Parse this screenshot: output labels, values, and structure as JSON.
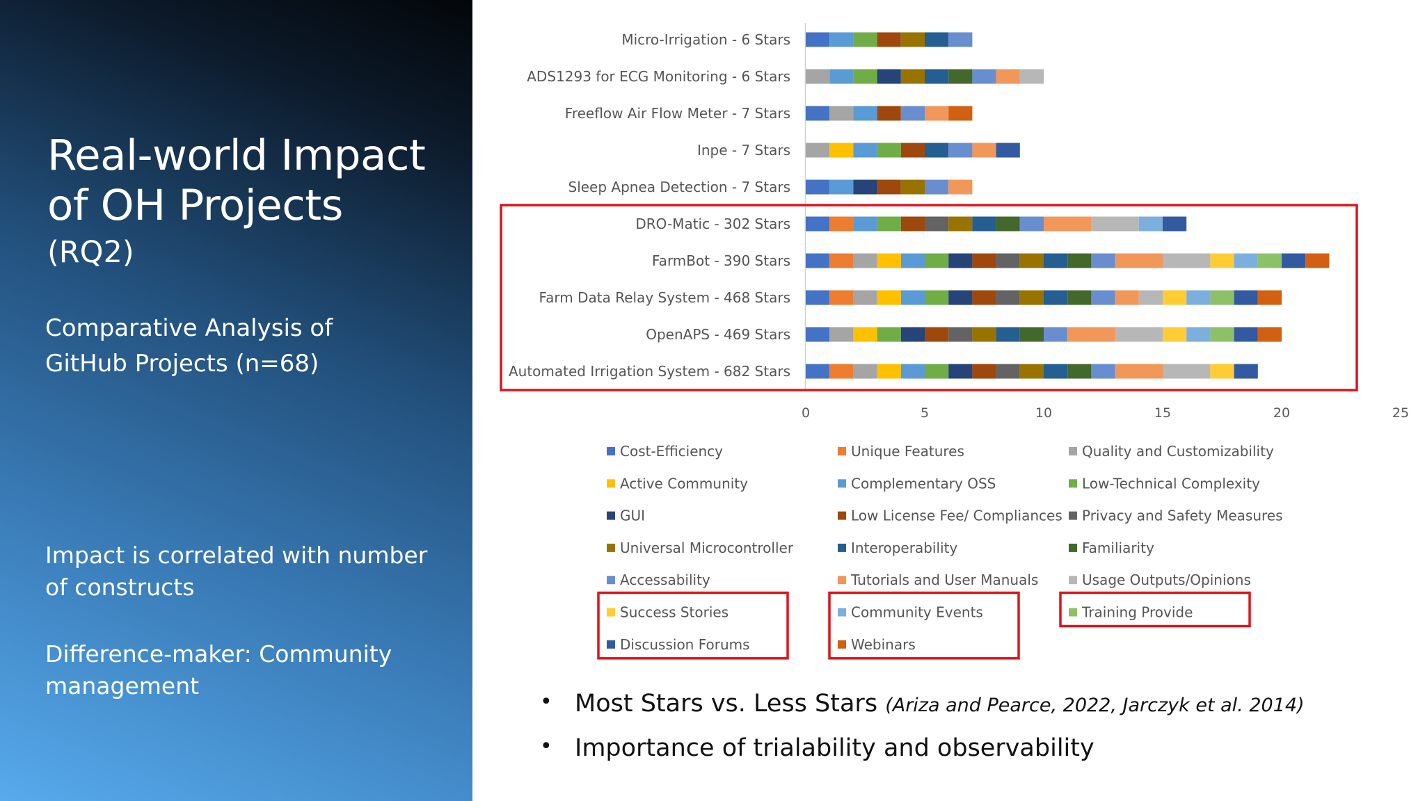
{
  "left": {
    "title_line1": "Real-world Impact",
    "title_line2": "of OH Projects",
    "rq": "(RQ2)",
    "analysis_line1": "Comparative Analysis of",
    "analysis_line2": "GitHub Projects (n=68)",
    "impact_line1": "Impact is correlated with number",
    "impact_line2": "of constructs",
    "diff_line1": "Difference-maker: Community",
    "diff_line2": "management"
  },
  "bullets": [
    {
      "text": "Most Stars vs. Less Stars",
      "cite": "(Ariza and Pearce, 2022, Jarczyk et al. 2014)"
    },
    {
      "text": "Importance of trialability and observability",
      "cite": ""
    }
  ],
  "chart_data": {
    "type": "bar",
    "orientation": "horizontal",
    "stacked": true,
    "xlim": [
      0,
      25
    ],
    "xticks": [
      "0",
      "5",
      "10",
      "15",
      "20",
      "25"
    ],
    "legend_position": "bottom",
    "highlight_color": "#e0131b",
    "constructs": [
      {
        "name": "Cost-Efficiency",
        "color": "#4472c4"
      },
      {
        "name": "Unique Features",
        "color": "#ed7d31"
      },
      {
        "name": "Quality and Customizability",
        "color": "#a5a5a5"
      },
      {
        "name": "Active Community",
        "color": "#ffc000"
      },
      {
        "name": "Complementary OSS",
        "color": "#5b9bd5"
      },
      {
        "name": "Low-Technical Complexity",
        "color": "#70ad47"
      },
      {
        "name": "GUI",
        "color": "#264478"
      },
      {
        "name": "Low License Fee/ Compliances",
        "color": "#9e480e"
      },
      {
        "name": "Privacy and Safety Measures",
        "color": "#636363"
      },
      {
        "name": "Universal Microcontroller",
        "color": "#997300"
      },
      {
        "name": "Interoperability",
        "color": "#255e91"
      },
      {
        "name": "Familiarity",
        "color": "#43682b"
      },
      {
        "name": "Accessability",
        "color": "#698ed0"
      },
      {
        "name": "Tutorials and User Manuals",
        "color": "#f1975a"
      },
      {
        "name": "Usage Outputs/Opinions",
        "color": "#b7b7b7"
      },
      {
        "name": "Success Stories",
        "color": "#ffcd33"
      },
      {
        "name": "Community Events",
        "color": "#7cafdd"
      },
      {
        "name": "Training Provide",
        "color": "#8cc168"
      },
      {
        "name": "Discussion Forums",
        "color": "#335aa1"
      },
      {
        "name": "Webinars",
        "color": "#d26012"
      }
    ],
    "projects": [
      {
        "label": "Micro-Irrigation - 6 Stars",
        "constructs": [
          0,
          4,
          5,
          7,
          9,
          10,
          12
        ]
      },
      {
        "label": "ADS1293 for ECG Monitoring - 6 Stars",
        "constructs": [
          2,
          4,
          5,
          6,
          9,
          10,
          11,
          12,
          13,
          14
        ]
      },
      {
        "label": "Freeflow Air Flow Meter - 7 Stars",
        "constructs": [
          0,
          2,
          4,
          7,
          12,
          13,
          19
        ]
      },
      {
        "label": "Inpe - 7 Stars",
        "constructs": [
          2,
          3,
          4,
          5,
          7,
          10,
          12,
          13,
          18
        ]
      },
      {
        "label": "Sleep Apnea Detection - 7 Stars",
        "constructs": [
          0,
          4,
          6,
          7,
          9,
          12,
          13
        ]
      },
      {
        "label": "DRO-Matic - 302 Stars",
        "highlighted": true,
        "segments": [
          [
            0,
            1
          ],
          [
            1,
            1
          ],
          [
            4,
            1
          ],
          [
            5,
            1
          ],
          [
            7,
            1
          ],
          [
            8,
            1
          ],
          [
            9,
            1
          ],
          [
            10,
            1
          ],
          [
            11,
            1
          ],
          [
            12,
            1
          ],
          [
            13,
            2
          ],
          [
            14,
            2
          ],
          [
            16,
            1
          ],
          [
            18,
            1
          ]
        ]
      },
      {
        "label": "FarmBot - 390 Stars",
        "highlighted": true,
        "segments": [
          [
            0,
            1
          ],
          [
            1,
            1
          ],
          [
            2,
            1
          ],
          [
            3,
            1
          ],
          [
            4,
            1
          ],
          [
            5,
            1
          ],
          [
            6,
            1
          ],
          [
            7,
            1
          ],
          [
            8,
            1
          ],
          [
            9,
            1
          ],
          [
            10,
            1
          ],
          [
            11,
            1
          ],
          [
            12,
            1
          ],
          [
            13,
            2
          ],
          [
            14,
            2
          ],
          [
            15,
            1
          ],
          [
            16,
            1
          ],
          [
            17,
            1
          ],
          [
            18,
            1
          ],
          [
            19,
            1
          ]
        ]
      },
      {
        "label": "Farm Data Relay System - 468 Stars",
        "highlighted": true,
        "segments": [
          [
            0,
            1
          ],
          [
            1,
            1
          ],
          [
            2,
            1
          ],
          [
            3,
            1
          ],
          [
            4,
            1
          ],
          [
            5,
            1
          ],
          [
            6,
            1
          ],
          [
            7,
            1
          ],
          [
            8,
            1
          ],
          [
            9,
            1
          ],
          [
            10,
            1
          ],
          [
            11,
            1
          ],
          [
            12,
            1
          ],
          [
            13,
            1
          ],
          [
            14,
            1
          ],
          [
            15,
            1
          ],
          [
            16,
            1
          ],
          [
            17,
            1
          ],
          [
            18,
            1
          ],
          [
            19,
            1
          ]
        ]
      },
      {
        "label": "OpenAPS - 469 Stars",
        "highlighted": true,
        "segments": [
          [
            0,
            1
          ],
          [
            2,
            1
          ],
          [
            3,
            1
          ],
          [
            5,
            1
          ],
          [
            6,
            1
          ],
          [
            7,
            1
          ],
          [
            8,
            1
          ],
          [
            9,
            1
          ],
          [
            10,
            1
          ],
          [
            11,
            1
          ],
          [
            12,
            1
          ],
          [
            13,
            2
          ],
          [
            14,
            2
          ],
          [
            15,
            1
          ],
          [
            16,
            1
          ],
          [
            17,
            1
          ],
          [
            18,
            1
          ],
          [
            19,
            1
          ]
        ]
      },
      {
        "label": "Automated Irrigation System - 682 Stars",
        "highlighted": true,
        "segments": [
          [
            0,
            1
          ],
          [
            1,
            1
          ],
          [
            2,
            1
          ],
          [
            3,
            1
          ],
          [
            4,
            1
          ],
          [
            5,
            1
          ],
          [
            6,
            1
          ],
          [
            7,
            1
          ],
          [
            8,
            1
          ],
          [
            9,
            1
          ],
          [
            10,
            1
          ],
          [
            11,
            1
          ],
          [
            12,
            1
          ],
          [
            13,
            2
          ],
          [
            14,
            2
          ],
          [
            15,
            1
          ],
          [
            18,
            1
          ]
        ]
      }
    ],
    "highlighted_legend_items": [
      "Success Stories",
      "Discussion Forums",
      "Community Events",
      "Webinars",
      "Training Provide"
    ]
  }
}
